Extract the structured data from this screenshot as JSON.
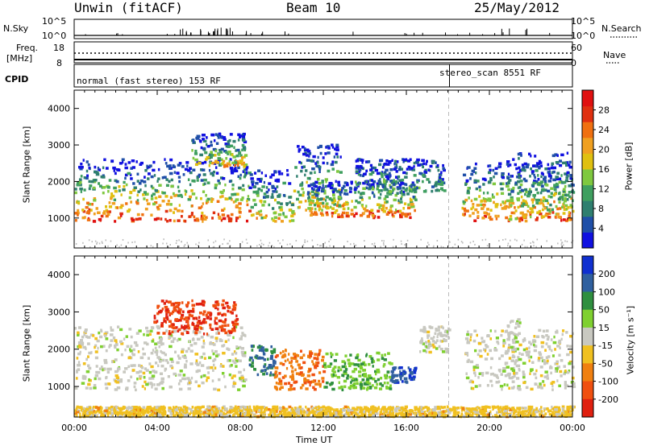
{
  "header": {
    "radar": "Unwin (fitACF)",
    "beam": "Beam 10",
    "date": "25/May/2012"
  },
  "strip_panels": {
    "nsky_label": "N.Sky",
    "nsky_ticks": [
      "10^5",
      "10^0"
    ],
    "nsearch_label": "N.Search",
    "nsearch_ticks": [
      "10^5",
      "10^0"
    ],
    "freq_label_1": "Freq.",
    "freq_label_2": "[MHz]",
    "freq_ticks": [
      "18",
      "8"
    ],
    "nave_label": "Nave",
    "nave_ticks": [
      "60",
      "0"
    ],
    "cpid_label": "CPID",
    "cpid_modes": [
      {
        "text": "normal (fast stereo) 153 RF",
        "start_hour": 0
      },
      {
        "text": "stereo_scan 8551 RF",
        "start_hour": 18
      }
    ]
  },
  "chart_data": [
    {
      "type": "heatmap",
      "name": "power",
      "ylabel": "Slant Range [km]",
      "x_unit": "hour UT",
      "xlim": [
        0,
        24
      ],
      "ylim": [
        180,
        4500
      ],
      "yticks": [
        1000,
        2000,
        3000,
        4000
      ],
      "colorbar_label": "Power [dB]",
      "colorbar_ticks": [
        "4",
        "8",
        "12",
        "16",
        "20",
        "24",
        "28"
      ],
      "colorbar_colors": [
        "#1010e0",
        "#1f4fa8",
        "#2f7f6f",
        "#3f9f5f",
        "#7fc83f",
        "#e0c010",
        "#f0a020",
        "#f07010",
        "#e03010",
        "#e01010"
      ],
      "echo_regions": [
        {
          "x": [
            0.0,
            8.4
          ],
          "range": [
            900,
            2600
          ],
          "level": "high"
        },
        {
          "x": [
            5.6,
            8.2
          ],
          "range": [
            2400,
            3300
          ],
          "level": "medium"
        },
        {
          "x": [
            8.4,
            10.5
          ],
          "range": [
            900,
            2300
          ],
          "level": "medium"
        },
        {
          "x": [
            10.5,
            12.8
          ],
          "range": [
            1200,
            3000
          ],
          "level": "medium"
        },
        {
          "x": [
            11.2,
            16.4
          ],
          "range": [
            1000,
            2000
          ],
          "level": "high"
        },
        {
          "x": [
            13.5,
            17.8
          ],
          "range": [
            1700,
            2600
          ],
          "level": "low"
        },
        {
          "x": [
            18.6,
            24.0
          ],
          "range": [
            900,
            2500
          ],
          "level": "high"
        },
        {
          "x": [
            20.8,
            24.0
          ],
          "range": [
            900,
            2800
          ],
          "level": "medium"
        }
      ]
    },
    {
      "type": "heatmap",
      "name": "velocity",
      "xlabel": "Time UT",
      "ylabel": "Slant Range [km]",
      "x_unit": "hour UT",
      "xlim": [
        0,
        24
      ],
      "ylim": [
        180,
        4500
      ],
      "xticks": [
        "00:00",
        "04:00",
        "08:00",
        "12:00",
        "16:00",
        "20:00",
        "00:00"
      ],
      "yticks": [
        1000,
        2000,
        3000,
        4000
      ],
      "colorbar_label": "Velocity [m s⁻¹]",
      "colorbar_ticks": [
        "200",
        "100",
        "50",
        "15",
        "-15",
        "-50",
        "-100",
        "-200"
      ],
      "colorbar_colors": [
        "#1030d0",
        "#30609f",
        "#2f8f3f",
        "#7fd030",
        "#c8c8c0",
        "#f0c020",
        "#f08010",
        "#f05010",
        "#e02010"
      ],
      "echo_regions": [
        {
          "x": [
            0.0,
            8.2
          ],
          "range": [
            900,
            2600
          ],
          "velocity": 0
        },
        {
          "x": [
            3.8,
            7.8
          ],
          "range": [
            2400,
            3300
          ],
          "velocity": -150
        },
        {
          "x": [
            8.4,
            9.6
          ],
          "range": [
            1300,
            2100
          ],
          "velocity": 120
        },
        {
          "x": [
            9.6,
            12.0
          ],
          "range": [
            900,
            2000
          ],
          "velocity": -100
        },
        {
          "x": [
            12.0,
            15.2
          ],
          "range": [
            900,
            1900
          ],
          "velocity": 60
        },
        {
          "x": [
            15.2,
            16.4
          ],
          "range": [
            1100,
            1500
          ],
          "velocity": 150
        },
        {
          "x": [
            16.6,
            18.0
          ],
          "range": [
            1900,
            2600
          ],
          "velocity": 0
        },
        {
          "x": [
            18.8,
            24.0
          ],
          "range": [
            900,
            2500
          ],
          "velocity": 0
        },
        {
          "x": [
            20.6,
            21.4
          ],
          "range": [
            1200,
            2800
          ],
          "velocity": 20
        },
        {
          "x": [
            0.0,
            24.0
          ],
          "range": [
            180,
            450
          ],
          "velocity": -40
        }
      ]
    }
  ]
}
